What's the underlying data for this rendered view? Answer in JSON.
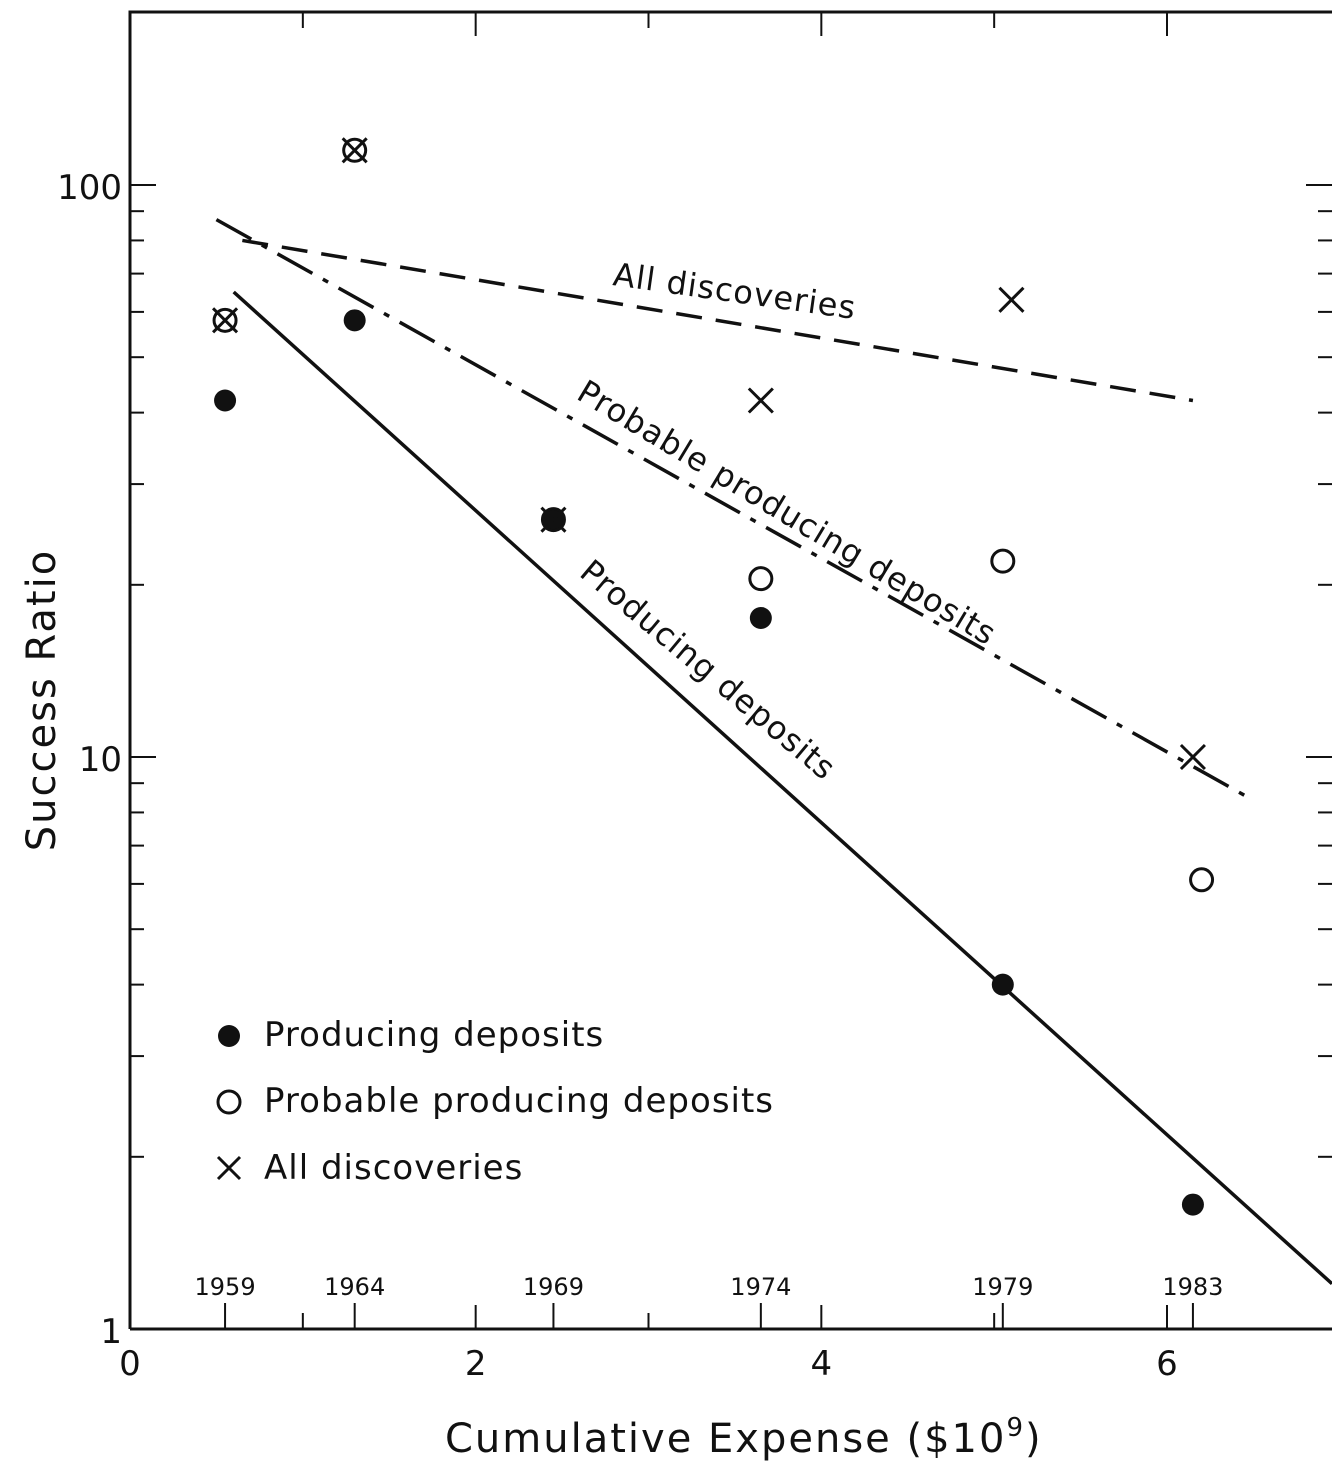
{
  "chart_data": {
    "type": "scatter",
    "xlabel": "Cumulative Expense ($10",
    "xlabel_sup": "9",
    "xlabel_close": ")",
    "ylabel": "Success Ratio",
    "xlim": [
      0,
      7
    ],
    "ylim": [
      1,
      200
    ],
    "yscale": "log",
    "x_ticks": [
      0,
      2,
      4,
      6
    ],
    "x_tick_labels": [
      "0",
      "2",
      "4",
      "6"
    ],
    "y_tick_labels": [
      {
        "value": 1,
        "label": "1"
      },
      {
        "value": 10,
        "label": "10"
      },
      {
        "value": 100,
        "label": "100"
      }
    ],
    "year_markers": [
      {
        "x": 0.55,
        "label": "1959"
      },
      {
        "x": 1.3,
        "label": "1964"
      },
      {
        "x": 2.45,
        "label": "1969"
      },
      {
        "x": 3.65,
        "label": "1974"
      },
      {
        "x": 5.05,
        "label": "1979"
      },
      {
        "x": 6.15,
        "label": "1983"
      }
    ],
    "series": [
      {
        "name": "Producing deposits",
        "marker": "filled-circle",
        "points": [
          {
            "x": 0.55,
            "y": 42
          },
          {
            "x": 1.3,
            "y": 58
          },
          {
            "x": 2.45,
            "y": 26
          },
          {
            "x": 3.65,
            "y": 17.5
          },
          {
            "x": 5.05,
            "y": 4
          },
          {
            "x": 6.15,
            "y": 1.65
          }
        ]
      },
      {
        "name": "Probable producing deposits",
        "marker": "open-circle",
        "points": [
          {
            "x": 0.55,
            "y": 58
          },
          {
            "x": 1.3,
            "y": 115
          },
          {
            "x": 2.45,
            "y": 26
          },
          {
            "x": 3.65,
            "y": 20.5
          },
          {
            "x": 5.05,
            "y": 22
          },
          {
            "x": 6.2,
            "y": 6.1
          }
        ]
      },
      {
        "name": "All discoveries",
        "marker": "cross",
        "points": [
          {
            "x": 0.55,
            "y": 58
          },
          {
            "x": 1.3,
            "y": 115
          },
          {
            "x": 2.45,
            "y": 26
          },
          {
            "x": 3.65,
            "y": 42
          },
          {
            "x": 5.1,
            "y": 63
          },
          {
            "x": 6.15,
            "y": 10
          }
        ]
      }
    ],
    "fit_lines": [
      {
        "name": "All discoveries",
        "style": "dashed",
        "from": [
          0.65,
          80
        ],
        "to": [
          6.15,
          42
        ]
      },
      {
        "name": "Probable producing deposits",
        "style": "dash-dot",
        "from": [
          0.5,
          87
        ],
        "to": [
          6.5,
          8.4
        ]
      },
      {
        "name": "Producing deposits",
        "style": "solid",
        "from": [
          0.6,
          65
        ],
        "to": [
          7.0,
          1.2
        ]
      }
    ],
    "line_labels": {
      "all": "All discoveries",
      "probable": "Probable producing deposits",
      "producing": "Producing deposits"
    },
    "legend": {
      "position": "lower-left",
      "items": [
        {
          "marker": "filled-circle",
          "label": "Producing deposits"
        },
        {
          "marker": "open-circle",
          "label": "Probable producing deposits"
        },
        {
          "marker": "cross",
          "label": "All discoveries"
        }
      ]
    },
    "grid": false
  }
}
